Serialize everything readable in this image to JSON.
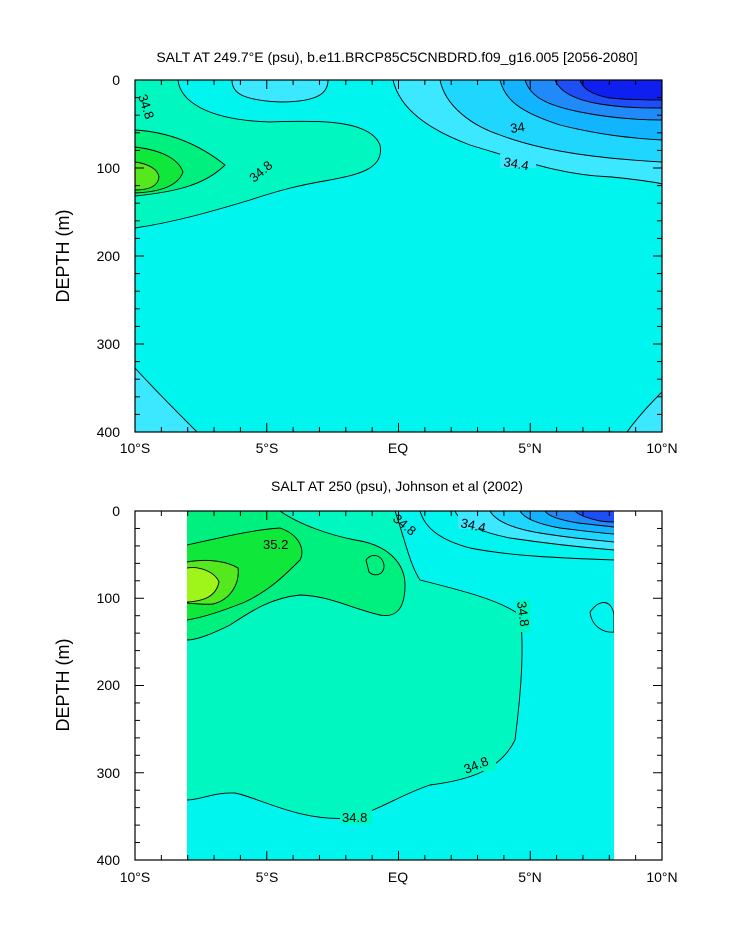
{
  "colors": {
    "below_33_6": "#0f1ff0",
    "c33_6": "#1e4ef5",
    "c33_8": "#1f8af8",
    "c34_0": "#12b4ff",
    "c34_2": "#1fd6ff",
    "c34_4": "#3ce8ff",
    "c34_6": "#00f5ef",
    "c34_8": "#00f7c0",
    "c35_0": "#00f080",
    "c35_2": "#0fe83a",
    "c35_4": "#55e81f",
    "c35_6": "#9ff51a"
  },
  "chart_data": [
    {
      "type": "contour",
      "title": "SALT AT 249.7°E (psu), b.e11.BRCP85C5CNBDRD.f09_g16.005 [2056-2080]",
      "ylabel": "DEPTH (m)",
      "xlim": [
        -10,
        10
      ],
      "ylim": [
        400,
        0
      ],
      "x_ticks": [
        "10°S",
        "5°S",
        "EQ",
        "5°N",
        "10°N"
      ],
      "y_ticks": [
        "0",
        "100",
        "200",
        "300",
        "400"
      ],
      "contour_labels": [
        "34.8",
        "34.8",
        "34",
        "34.4"
      ],
      "levels": [
        {
          "value": 34.8,
          "x": [
            -10,
            -8,
            -6,
            -4,
            -2.5,
            -1.0
          ],
          "y": [
            220,
            195,
            160,
            120,
            100,
            80
          ]
        },
        {
          "value": 35.0,
          "x": [
            -10,
            -8.5,
            -7
          ],
          "y": [
            195,
            165,
            110
          ]
        },
        {
          "value": 35.2,
          "x": [
            -10,
            -9.0,
            -8.6
          ],
          "y": [
            160,
            130,
            110
          ]
        },
        {
          "value": 34.4,
          "x": [
            0,
            3,
            6,
            10
          ],
          "y": [
            0,
            85,
            95,
            115
          ]
        },
        {
          "value": 34.0,
          "x": [
            3,
            6,
            10
          ],
          "y": [
            0,
            60,
            65
          ]
        }
      ]
    },
    {
      "type": "contour",
      "title": "SALT AT 250 (psu), Johnson et al (2002)",
      "ylabel": "DEPTH (m)",
      "xlim": [
        -10,
        10
      ],
      "ylim": [
        400,
        0
      ],
      "x_ticks": [
        "10°S",
        "5°S",
        "EQ",
        "5°N",
        "10°N"
      ],
      "y_ticks": [
        "0",
        "100",
        "200",
        "300",
        "400"
      ],
      "data_x_range": [
        -8,
        8.2
      ],
      "contour_labels": [
        "35.2",
        "34.8",
        "34.4",
        "34.8",
        "34.8",
        "34.8"
      ],
      "levels": [
        {
          "value": 34.8,
          "x": [
            -8,
            -5,
            -1,
            4.8,
            5,
            4
          ],
          "y": [
            320,
            320,
            345,
            300,
            150,
            20
          ]
        },
        {
          "value": 35.0,
          "x": [
            -8,
            -5,
            -1,
            0.2
          ],
          "y": [
            150,
            110,
            95,
            60
          ]
        },
        {
          "value": 35.2,
          "x": [
            -8,
            -5.5,
            -4.5
          ],
          "y": [
            120,
            85,
            40
          ]
        },
        {
          "value": 34.4,
          "x": [
            1,
            4,
            8.2
          ],
          "y": [
            0,
            40,
            60
          ]
        }
      ]
    }
  ]
}
